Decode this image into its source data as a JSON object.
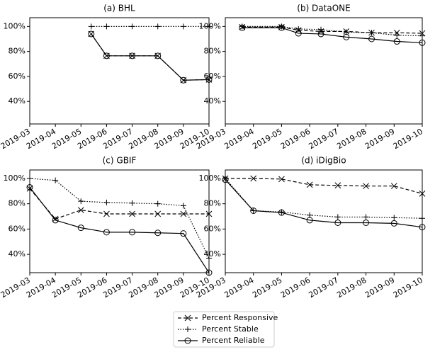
{
  "chart_data": [
    {
      "type": "line",
      "title": "(a) BHL",
      "xlim": [
        0,
        7
      ],
      "xticks": [
        {
          "value": 0,
          "label": "2019-03"
        },
        {
          "value": 1,
          "label": "2019-04"
        },
        {
          "value": 2,
          "label": "2019-05"
        },
        {
          "value": 3,
          "label": "2019-06"
        },
        {
          "value": 4,
          "label": "2019-07"
        },
        {
          "value": 5,
          "label": "2019-08"
        },
        {
          "value": 6,
          "label": "2019-09"
        },
        {
          "value": 7,
          "label": "2019-10"
        }
      ],
      "ylim": [
        22,
        107
      ],
      "yticks": [
        {
          "value": 40,
          "label": "40%"
        },
        {
          "value": 60,
          "label": "60%"
        },
        {
          "value": 80,
          "label": "80%"
        },
        {
          "value": 100,
          "label": "100%"
        }
      ],
      "series": [
        {
          "name": "Percent Responsive",
          "color": "#000000",
          "line": "dashed",
          "marker": "x",
          "x": [
            2.4,
            3,
            4,
            5,
            6,
            7
          ],
          "values": [
            94,
            76.5,
            76.5,
            76.5,
            57,
            57.5
          ]
        },
        {
          "name": "Percent Stable",
          "color": "#000000",
          "line": "dotted",
          "marker": "plus",
          "x": [
            2.4,
            3,
            4,
            5,
            6,
            7
          ],
          "values": [
            100,
            100,
            100,
            100,
            100,
            100
          ]
        },
        {
          "name": "Percent Reliable",
          "color": "#000000",
          "line": "solid",
          "marker": "circle",
          "x": [
            2.4,
            3,
            4,
            5,
            6,
            7
          ],
          "values": [
            94,
            76.5,
            76.5,
            76.5,
            57,
            57.5
          ]
        }
      ]
    },
    {
      "type": "line",
      "title": "(b) DataONE",
      "xlim": [
        0,
        7
      ],
      "xticks": [
        {
          "value": 0,
          "label": "2019-03"
        },
        {
          "value": 1,
          "label": "2019-04"
        },
        {
          "value": 2,
          "label": "2019-05"
        },
        {
          "value": 3,
          "label": "2019-06"
        },
        {
          "value": 4,
          "label": "2019-07"
        },
        {
          "value": 5,
          "label": "2019-08"
        },
        {
          "value": 6,
          "label": "2019-09"
        },
        {
          "value": 7,
          "label": "2019-10"
        }
      ],
      "ylim": [
        22,
        107
      ],
      "yticks": [
        {
          "value": 40,
          "label": "40%"
        },
        {
          "value": 60,
          "label": "60%"
        },
        {
          "value": 80,
          "label": "80%"
        },
        {
          "value": 100,
          "label": "100%"
        }
      ],
      "series": [
        {
          "name": "Percent Responsive",
          "color": "#000000",
          "line": "dashed",
          "marker": "x",
          "x": [
            0.6,
            2,
            2.6,
            3.4,
            4.3,
            5.2,
            6.1,
            7
          ],
          "values": [
            99.5,
            99.5,
            97,
            96,
            96,
            95,
            95,
            94.5
          ]
        },
        {
          "name": "Percent Stable",
          "color": "#000000",
          "line": "dotted",
          "marker": "plus",
          "x": [
            0.6,
            2,
            2.6,
            3.4,
            4.3,
            5.2,
            6.1,
            7
          ],
          "values": [
            100,
            100,
            98,
            97.5,
            95.5,
            95,
            93,
            92.5
          ]
        },
        {
          "name": "Percent Reliable",
          "color": "#000000",
          "line": "solid",
          "marker": "circle",
          "x": [
            0.6,
            2,
            2.6,
            3.4,
            4.3,
            5.2,
            6.1,
            7
          ],
          "values": [
            99,
            99,
            94.5,
            94,
            91.5,
            90,
            88,
            87
          ]
        }
      ]
    },
    {
      "type": "line",
      "title": "(c) GBIF",
      "xlim": [
        0,
        7
      ],
      "xticks": [
        {
          "value": 0,
          "label": "2019-03"
        },
        {
          "value": 1,
          "label": "2019-04"
        },
        {
          "value": 2,
          "label": "2019-05"
        },
        {
          "value": 3,
          "label": "2019-06"
        },
        {
          "value": 4,
          "label": "2019-07"
        },
        {
          "value": 5,
          "label": "2019-08"
        },
        {
          "value": 6,
          "label": "2019-09"
        },
        {
          "value": 7,
          "label": "2019-10"
        }
      ],
      "ylim": [
        25.5,
        106.7
      ],
      "yticks": [
        {
          "value": 40,
          "label": "40%"
        },
        {
          "value": 60,
          "label": "60%"
        },
        {
          "value": 80,
          "label": "80%"
        },
        {
          "value": 100,
          "label": "100%"
        }
      ],
      "series": [
        {
          "name": "Percent Responsive",
          "color": "#000000",
          "line": "dashed",
          "marker": "x",
          "x": [
            0,
            1,
            2,
            3,
            4,
            5,
            6,
            7
          ],
          "values": [
            92,
            68,
            75,
            72,
            72,
            72,
            72,
            72
          ]
        },
        {
          "name": "Percent Stable",
          "color": "#000000",
          "line": "dotted",
          "marker": "plus",
          "x": [
            0,
            1,
            2,
            3,
            4,
            5,
            6,
            7
          ],
          "values": [
            100,
            98.5,
            82,
            81,
            80.5,
            80,
            78.5,
            37
          ]
        },
        {
          "name": "Percent Reliable",
          "color": "#000000",
          "line": "solid",
          "marker": "circle",
          "x": [
            0,
            1,
            2,
            3,
            4,
            5,
            6,
            7
          ],
          "values": [
            93,
            67,
            61,
            57.5,
            57.5,
            57,
            56.5,
            25.5
          ]
        }
      ]
    },
    {
      "type": "line",
      "title": "(d) iDigBio",
      "xlim": [
        0,
        7
      ],
      "xticks": [
        {
          "value": 0,
          "label": "2019-03"
        },
        {
          "value": 1,
          "label": "2019-04"
        },
        {
          "value": 2,
          "label": "2019-05"
        },
        {
          "value": 3,
          "label": "2019-06"
        },
        {
          "value": 4,
          "label": "2019-07"
        },
        {
          "value": 5,
          "label": "2019-08"
        },
        {
          "value": 6,
          "label": "2019-09"
        },
        {
          "value": 7,
          "label": "2019-10"
        }
      ],
      "ylim": [
        25.5,
        106.7
      ],
      "yticks": [
        {
          "value": 40,
          "label": "40%"
        },
        {
          "value": 60,
          "label": "60%"
        },
        {
          "value": 80,
          "label": "80%"
        },
        {
          "value": 100,
          "label": "100%"
        }
      ],
      "series": [
        {
          "name": "Percent Responsive",
          "color": "#000000",
          "line": "dashed",
          "marker": "x",
          "x": [
            0,
            1,
            2,
            3,
            4,
            5,
            6,
            7
          ],
          "values": [
            100,
            100,
            99.5,
            95,
            94.5,
            94,
            94,
            88
          ]
        },
        {
          "name": "Percent Stable",
          "color": "#000000",
          "line": "dotted",
          "marker": "plus",
          "x": [
            0,
            1,
            2,
            3,
            4,
            5,
            6,
            7
          ],
          "values": [
            100,
            74.5,
            73.5,
            71,
            69.5,
            69.5,
            69,
            68.5
          ]
        },
        {
          "name": "Percent Reliable",
          "color": "#000000",
          "line": "solid",
          "marker": "circle",
          "x": [
            0,
            1,
            2,
            3,
            4,
            5,
            6,
            7
          ],
          "values": [
            99,
            74.5,
            73,
            67,
            65,
            65,
            64.5,
            61.5
          ]
        }
      ]
    }
  ]
}
